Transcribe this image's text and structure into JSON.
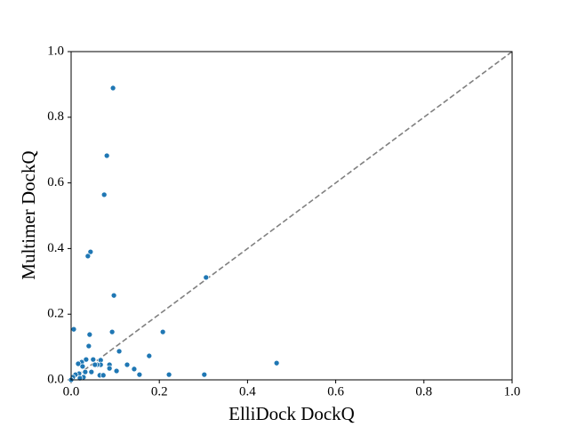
{
  "chart_data": {
    "type": "scatter",
    "xlabel": "ElliDock DockQ",
    "ylabel": "Multimer DockQ",
    "color": "#1f77b4",
    "x": [
      0.095,
      0.081,
      0.075,
      0.044,
      0.038,
      0.097,
      0.306,
      0.006,
      0.093,
      0.208,
      0.042,
      0.04,
      0.177,
      0.109,
      0.466,
      0.127,
      0.143,
      0.155,
      0.222,
      0.302,
      0.103,
      0.087,
      0.087,
      0.067,
      0.067,
      0.059,
      0.05,
      0.054,
      0.034,
      0.024,
      0.016,
      0.026,
      0.032,
      0.046,
      0.018,
      0.01,
      0.004,
      0.028,
      0.065,
      0.073,
      0.0,
      0.02
    ],
    "values": [
      0.889,
      0.683,
      0.564,
      0.39,
      0.377,
      0.257,
      0.312,
      0.154,
      0.146,
      0.146,
      0.138,
      0.103,
      0.073,
      0.087,
      0.051,
      0.046,
      0.033,
      0.016,
      0.016,
      0.016,
      0.027,
      0.046,
      0.035,
      0.06,
      0.046,
      0.046,
      0.062,
      0.046,
      0.062,
      0.054,
      0.049,
      0.041,
      0.024,
      0.024,
      0.019,
      0.016,
      0.008,
      0.008,
      0.014,
      0.014,
      0.0,
      0.005
    ],
    "xlim": [
      0,
      1
    ],
    "ylim": [
      0,
      1
    ],
    "xticks": [
      {
        "value": 0,
        "label": "0.0"
      },
      0.2,
      0.4,
      0.6,
      0.8,
      {
        "value": 1,
        "label": "1.0"
      }
    ],
    "yticks": [
      {
        "value": 0,
        "label": "0.0"
      },
      0.2,
      0.4,
      0.6,
      0.8,
      {
        "value": 1,
        "label": "1.0"
      }
    ],
    "diagonal": true
  }
}
